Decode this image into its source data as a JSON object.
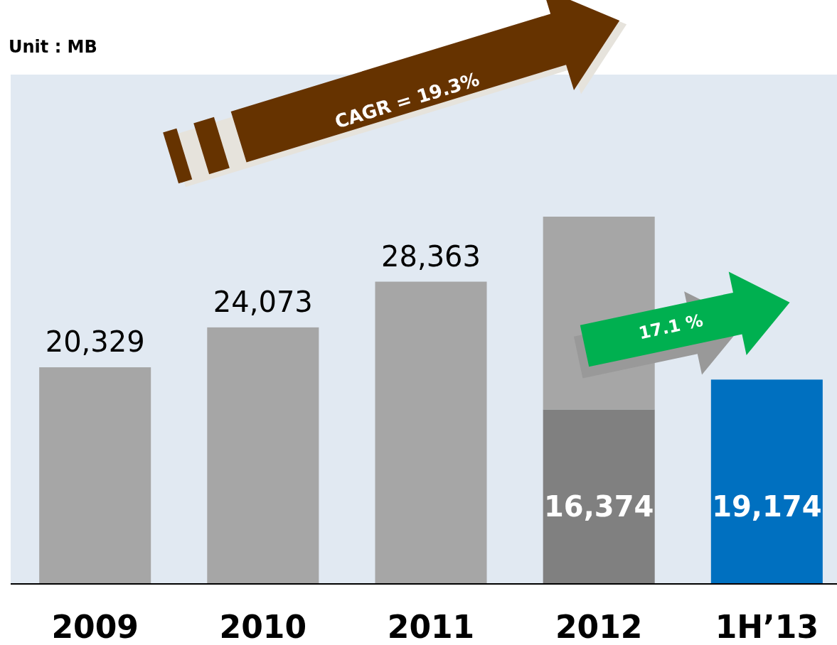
{
  "chart_data": {
    "type": "bar",
    "stacked": true,
    "grid": false,
    "categories": [
      "2009",
      "2010",
      "2011",
      "2012",
      "1H’13"
    ],
    "series": [
      {
        "colors": [
          null,
          null,
          null,
          "#808080",
          "#0070c0"
        ],
        "values": [
          null,
          null,
          null,
          16374,
          19174
        ],
        "value_labels": [
          null,
          null,
          null,
          "16,374",
          "19,174"
        ]
      },
      {
        "color": "#a6a6a6",
        "values": [
          20329,
          24073,
          28363,
          18090,
          null
        ],
        "value_labels": [
          "20,329",
          "24,073",
          "28,363",
          null,
          null
        ]
      }
    ],
    "annotations": [
      "Unit : MB",
      "CAGR = 19.3%",
      "17.1 %"
    ]
  }
}
